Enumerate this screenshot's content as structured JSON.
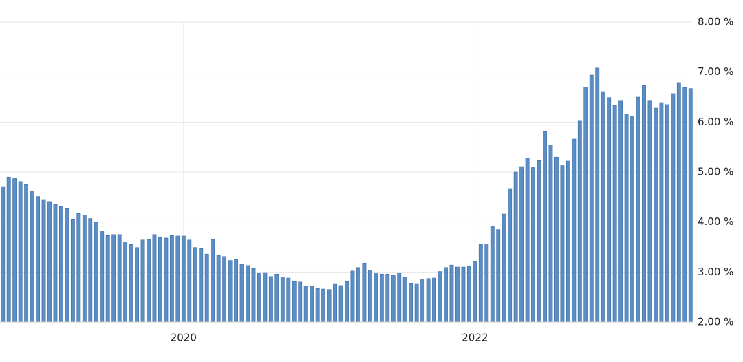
{
  "chart_data": {
    "type": "bar",
    "color": "#5b8ec5",
    "edge_color": "#3a6ca6",
    "grid": true,
    "xlim": [
      2018.74,
      2023.5
    ],
    "xticks": [
      2020,
      2022
    ],
    "ylim": [
      2,
      8
    ],
    "yticks": [
      {
        "value": 2,
        "label": "2.00 %"
      },
      {
        "value": 3,
        "label": "3.00 %"
      },
      {
        "value": 4,
        "label": "4.00 %"
      },
      {
        "value": 5,
        "label": "5.00 %"
      },
      {
        "value": 6,
        "label": "6.00 %"
      },
      {
        "value": 7,
        "label": "7.00 %"
      },
      {
        "value": 8,
        "label": "8.00 %"
      }
    ],
    "x": [
      2018.76,
      2018.8,
      2018.84,
      2018.88,
      2018.92,
      2018.96,
      2019.0,
      2019.04,
      2019.08,
      2019.12,
      2019.16,
      2019.2,
      2019.24,
      2019.28,
      2019.32,
      2019.36,
      2019.4,
      2019.44,
      2019.48,
      2019.52,
      2019.56,
      2019.6,
      2019.64,
      2019.68,
      2019.72,
      2019.76,
      2019.8,
      2019.84,
      2019.88,
      2019.92,
      2019.96,
      2020.0,
      2020.04,
      2020.08,
      2020.12,
      2020.16,
      2020.2,
      2020.24,
      2020.28,
      2020.32,
      2020.36,
      2020.4,
      2020.44,
      2020.48,
      2020.52,
      2020.56,
      2020.6,
      2020.64,
      2020.68,
      2020.72,
      2020.76,
      2020.8,
      2020.84,
      2020.88,
      2020.92,
      2020.96,
      2021.0,
      2021.04,
      2021.08,
      2021.12,
      2021.16,
      2021.2,
      2021.24,
      2021.28,
      2021.32,
      2021.36,
      2021.4,
      2021.44,
      2021.48,
      2021.52,
      2021.56,
      2021.6,
      2021.64,
      2021.68,
      2021.72,
      2021.76,
      2021.8,
      2021.84,
      2021.88,
      2021.92,
      2021.96,
      2022.0,
      2022.04,
      2022.08,
      2022.12,
      2022.16,
      2022.2,
      2022.24,
      2022.28,
      2022.32,
      2022.36,
      2022.4,
      2022.44,
      2022.48,
      2022.52,
      2022.56,
      2022.6,
      2022.64,
      2022.68,
      2022.72,
      2022.76,
      2022.8,
      2022.84,
      2022.88,
      2022.92,
      2022.96,
      2023.0,
      2023.04,
      2023.08,
      2023.12,
      2023.16,
      2023.2,
      2023.24,
      2023.28,
      2023.32,
      2023.36,
      2023.4,
      2023.44,
      2023.48
    ],
    "values": [
      4.71,
      4.9,
      4.87,
      4.81,
      4.75,
      4.62,
      4.51,
      4.45,
      4.41,
      4.35,
      4.31,
      4.28,
      4.06,
      4.17,
      4.14,
      4.07,
      3.99,
      3.82,
      3.73,
      3.75,
      3.75,
      3.6,
      3.55,
      3.49,
      3.64,
      3.65,
      3.75,
      3.69,
      3.68,
      3.73,
      3.72,
      3.72,
      3.64,
      3.49,
      3.47,
      3.36,
      3.65,
      3.33,
      3.31,
      3.23,
      3.26,
      3.15,
      3.13,
      3.07,
      2.98,
      2.99,
      2.91,
      2.96,
      2.9,
      2.88,
      2.81,
      2.8,
      2.72,
      2.71,
      2.67,
      2.66,
      2.65,
      2.77,
      2.73,
      2.81,
      3.02,
      3.09,
      3.18,
      3.04,
      2.97,
      2.96,
      2.96,
      2.93,
      2.98,
      2.9,
      2.78,
      2.77,
      2.86,
      2.87,
      2.88,
      3.01,
      3.09,
      3.14,
      3.1,
      3.1,
      3.11,
      3.22,
      3.55,
      3.56,
      3.92,
      3.85,
      4.16,
      4.67,
      5.0,
      5.11,
      5.27,
      5.1,
      5.23,
      5.81,
      5.54,
      5.3,
      5.13,
      5.22,
      5.66,
      6.02,
      6.7,
      6.94,
      7.08,
      6.61,
      6.49,
      6.33,
      6.42,
      6.15,
      6.12,
      6.5,
      6.73,
      6.42,
      6.28,
      6.39,
      6.35,
      6.57,
      6.79,
      6.69,
      6.67
    ]
  }
}
